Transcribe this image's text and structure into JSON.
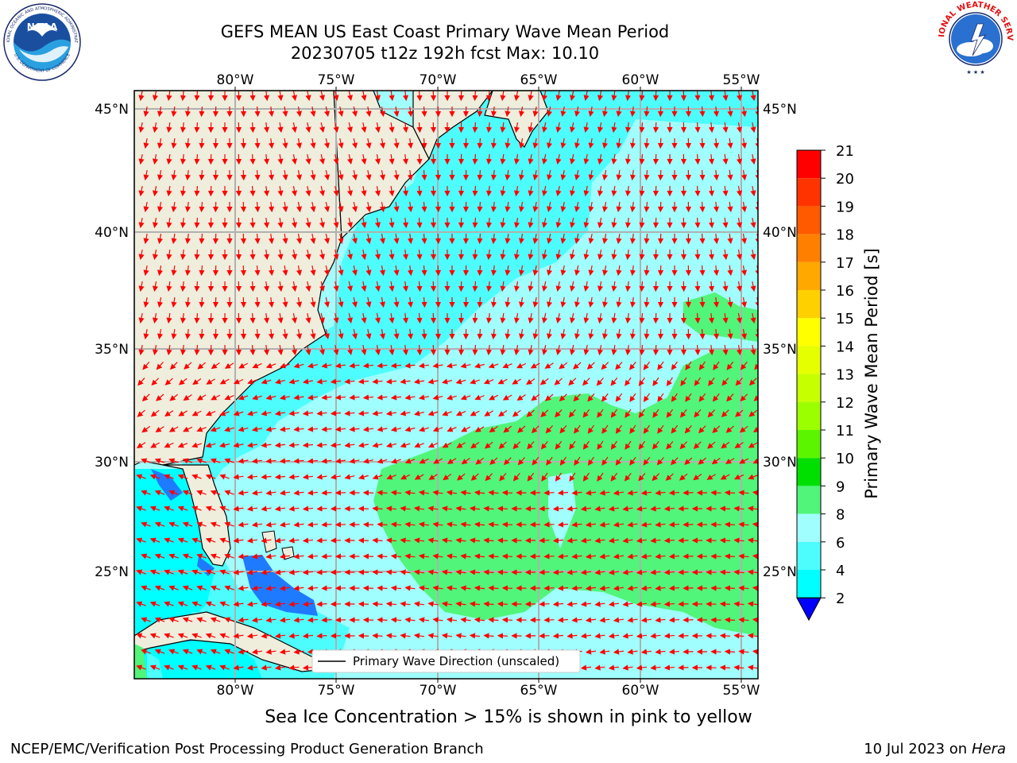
{
  "header": {
    "title_line1": "GEFS MEAN US East Coast Primary Wave Mean Period",
    "title_line2": "20230705 t12z 192h fcst   Max: 10.10"
  },
  "logos": {
    "noaa_text": "NOAA",
    "noaa_ring_top": "NATIONAL OCEANIC AND ATMOSPHERIC ADMINISTRATION",
    "noaa_ring_bottom": "U.S. DEPARTMENT OF COMMERCE",
    "nws_ring": "NATIONAL WEATHER SERVICE"
  },
  "map": {
    "lon_labels": [
      "80°W",
      "75°W",
      "70°W",
      "65°W",
      "60°W",
      "55°W"
    ],
    "lat_labels": [
      "45°N",
      "40°N",
      "35°N",
      "30°N",
      "25°N"
    ],
    "legend_label": "Primary Wave Direction (unscaled)",
    "colors": {
      "land": "#efeedd",
      "ocean_6_8": "#4dfdfd",
      "ocean_8_9": "#a0fefe",
      "ocean_9_10": "#50f57a",
      "ocean_4_6": "#00ffff",
      "ocean_2_4": "#1e7bff",
      "arrow": "#ff0000",
      "grid": "#b0b0b0"
    }
  },
  "colorbar": {
    "label": "Primary Wave Mean Period [s]",
    "ticks": [
      "21",
      "20",
      "19",
      "18",
      "17",
      "16",
      "15",
      "14",
      "13",
      "12",
      "11",
      "10",
      "9",
      "8",
      "6",
      "4",
      "2"
    ],
    "colors": [
      "#ff0000",
      "#ff3300",
      "#ff5a00",
      "#ff8000",
      "#ffa800",
      "#ffd000",
      "#ffff00",
      "#e6ff00",
      "#c6ff00",
      "#9cff00",
      "#5cf500",
      "#00e000",
      "#50f57a",
      "#a0fefe",
      "#4dfdfd",
      "#00ffff",
      "#1e7bff",
      "#0000ff"
    ]
  },
  "notes": {
    "sea_ice": "Sea Ice Concentration > 15% is shown in pink to yellow",
    "footer_left": "NCEP/EMC/Verification Post Processing Product Generation Branch",
    "footer_date": "10 Jul 2023 on ",
    "footer_machine": "Hera"
  }
}
